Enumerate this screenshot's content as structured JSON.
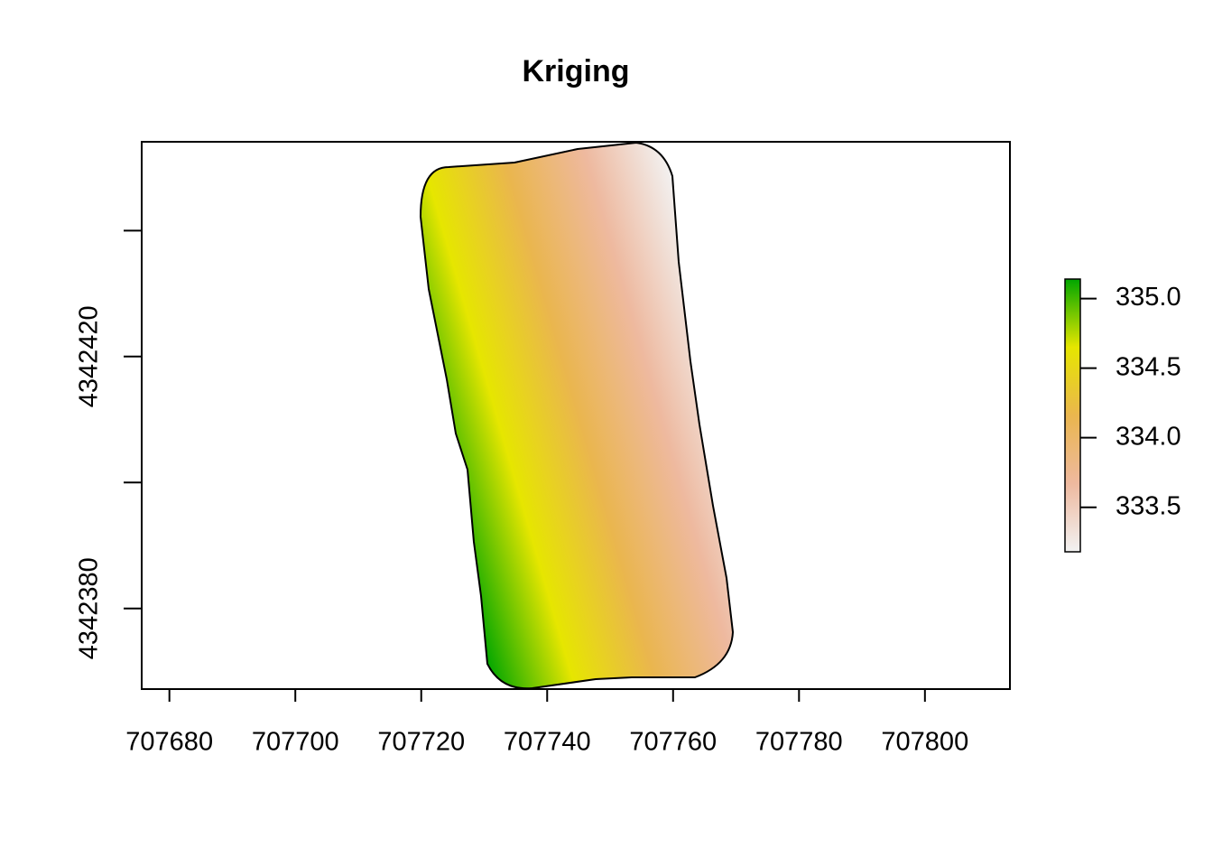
{
  "chart_data": {
    "type": "raster",
    "title": "Kriging",
    "xlim": [
      707675.6,
      707813.5
    ],
    "xticks": [
      707680,
      707700,
      707720,
      707740,
      707760,
      707780,
      707800
    ],
    "ylim": [
      4342367.2,
      4342454.1
    ],
    "yticks": [
      {
        "value": 4342380,
        "label": "4342380"
      },
      {
        "value": 4342400,
        "label": null
      },
      {
        "value": 4342420,
        "label": "4342420"
      },
      {
        "value": 4342440,
        "label": null
      }
    ],
    "zlim": [
      333.18,
      335.14
    ],
    "zticks": [
      {
        "value": 333.5,
        "label": "333.5"
      },
      {
        "value": 334.0,
        "label": "334.0"
      },
      {
        "value": 334.5,
        "label": "334.5"
      },
      {
        "value": 335.0,
        "label": "335.0"
      }
    ],
    "colormap": [
      "#f2f2f2",
      "#eeb99f",
      "#eab64e",
      "#e6e600",
      "#00a600"
    ]
  }
}
